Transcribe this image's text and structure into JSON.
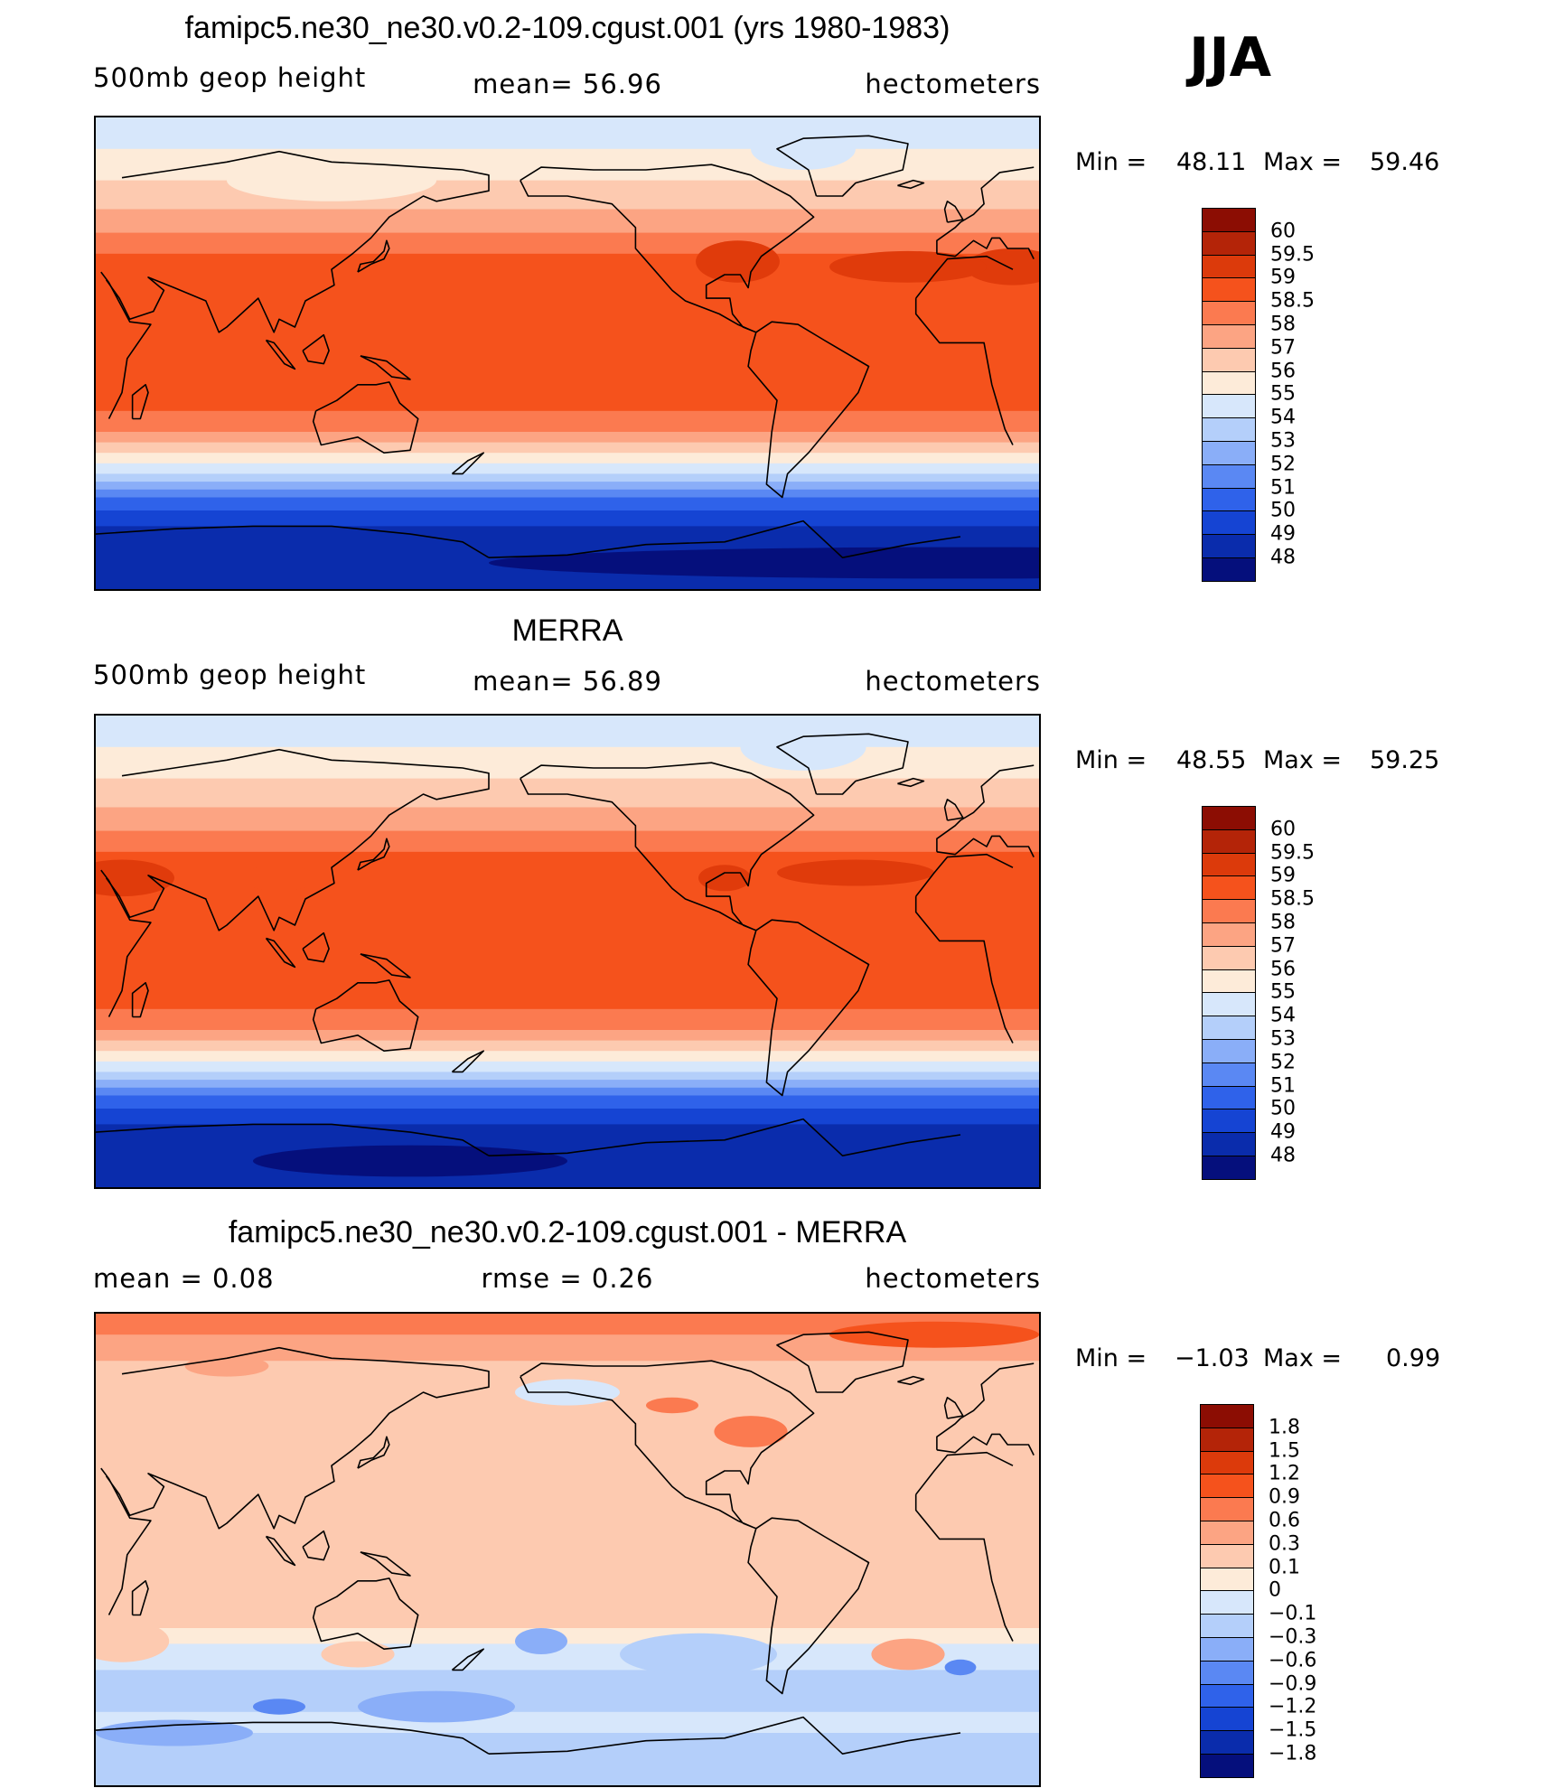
{
  "season": "JJA",
  "colors": {
    "zonal_positive": [
      "#fdebd9",
      "#fdcab0",
      "#fca483",
      "#fb7a50",
      "#f5521c",
      "#e03b0b",
      "#c02607",
      "#8c0d03"
    ],
    "zonal_negative": [
      "#d7e7fb",
      "#b4cffa",
      "#8aaef8",
      "#5a88f3",
      "#2f62ea",
      "#1544d3",
      "#0a2cac",
      "#050f7c"
    ],
    "continent_outline": "#000000"
  },
  "chart_data": [
    {
      "type": "heatmap",
      "title": "famipc5.ne30_ne30.v0.2-109.cgust.001 (yrs 1980-1983)",
      "left_label": "500mb  geop  height",
      "center_label": "mean=   56.96",
      "right_label": "hectometers",
      "min_text": "Min  =",
      "min_value": "48.11",
      "max_text": "Max  =",
      "max_value": "59.46",
      "colorbar_levels": [
        "60",
        "59.5",
        "59",
        "58.5",
        "58",
        "57",
        "56",
        "55",
        "54",
        "53",
        "52",
        "51",
        "50",
        "49",
        "48"
      ],
      "colorbar_colors": [
        "#8c0d03",
        "#b42408",
        "#dc3a0b",
        "#f5521c",
        "#fb7a50",
        "#fca483",
        "#fdcab0",
        "#fdebd9",
        "#d7e7fb",
        "#b4cffa",
        "#8aaef8",
        "#5a88f3",
        "#2f62ea",
        "#1544d3",
        "#0a2cac",
        "#050f7c"
      ],
      "xlim": [
        30,
        390
      ],
      "ylim": [
        -90,
        90
      ]
    },
    {
      "type": "heatmap",
      "title": "MERRA",
      "left_label": "500mb  geop  height",
      "center_label": "mean=   56.89",
      "right_label": "hectometers",
      "min_text": "Min  =",
      "min_value": "48.55",
      "max_text": "Max  =",
      "max_value": "59.25",
      "colorbar_levels": [
        "60",
        "59.5",
        "59",
        "58.5",
        "58",
        "57",
        "56",
        "55",
        "54",
        "53",
        "52",
        "51",
        "50",
        "49",
        "48"
      ],
      "colorbar_colors": [
        "#8c0d03",
        "#b42408",
        "#dc3a0b",
        "#f5521c",
        "#fb7a50",
        "#fca483",
        "#fdcab0",
        "#fdebd9",
        "#d7e7fb",
        "#b4cffa",
        "#8aaef8",
        "#5a88f3",
        "#2f62ea",
        "#1544d3",
        "#0a2cac",
        "#050f7c"
      ],
      "xlim": [
        30,
        390
      ],
      "ylim": [
        -90,
        90
      ]
    },
    {
      "type": "heatmap",
      "title": "famipc5.ne30_ne30.v0.2-109.cgust.001 - MERRA",
      "left_label": "mean =     0.08",
      "center_label": "rmse =     0.26",
      "right_label": "hectometers",
      "min_text": "Min  =",
      "min_value": "−1.03",
      "max_text": "Max  =",
      "max_value": "0.99",
      "colorbar_levels": [
        "1.8",
        "1.5",
        "1.2",
        "0.9",
        "0.6",
        "0.3",
        "0.1",
        "0",
        "−0.1",
        "−0.3",
        "−0.6",
        "−0.9",
        "−1.2",
        "−1.5",
        "−1.8"
      ],
      "colorbar_colors": [
        "#8c0d03",
        "#b42408",
        "#dc3a0b",
        "#f5521c",
        "#fb7a50",
        "#fca483",
        "#fdcab0",
        "#fdebd9",
        "#d7e7fb",
        "#b4cffa",
        "#8aaef8",
        "#5a88f3",
        "#2f62ea",
        "#1544d3",
        "#0a2cac",
        "#050f7c"
      ],
      "xlim": [
        30,
        390
      ],
      "ylim": [
        -90,
        90
      ]
    }
  ]
}
